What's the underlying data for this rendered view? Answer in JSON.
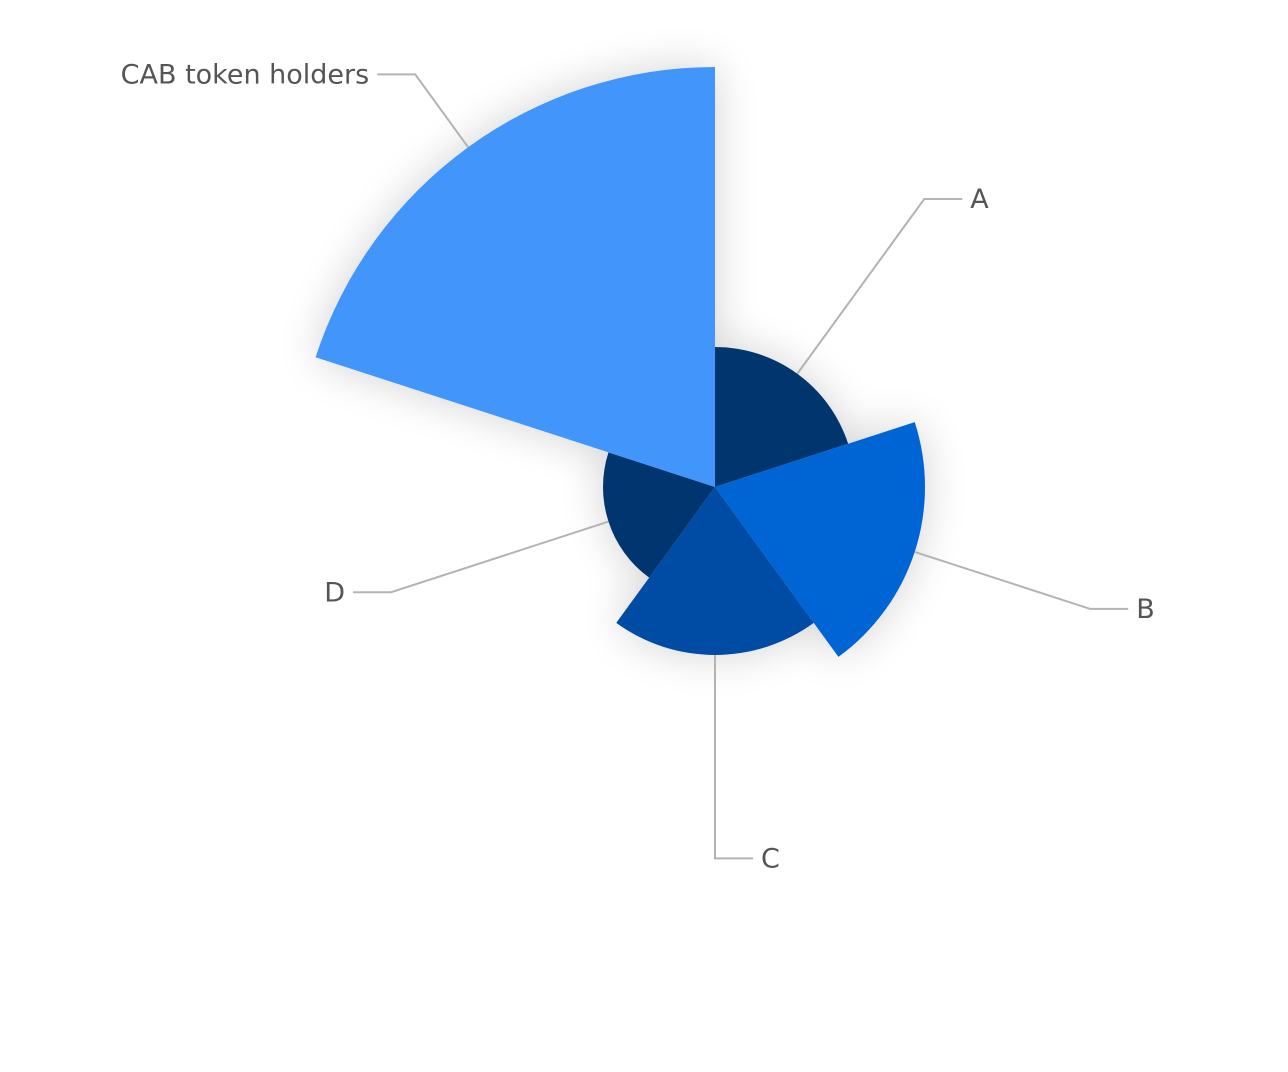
{
  "chart_data": {
    "type": "pie",
    "variant": "rose",
    "categories": [
      "A",
      "B",
      "C",
      "D",
      "CAB token holders"
    ],
    "values": [
      10,
      15,
      12,
      8,
      30
    ],
    "colors": {
      "A": "#04346e",
      "B": "#0565d4",
      "C": "#054ca4",
      "D": "#04366f",
      "CAB token holders": "#4295fb"
    },
    "legend": "none"
  }
}
